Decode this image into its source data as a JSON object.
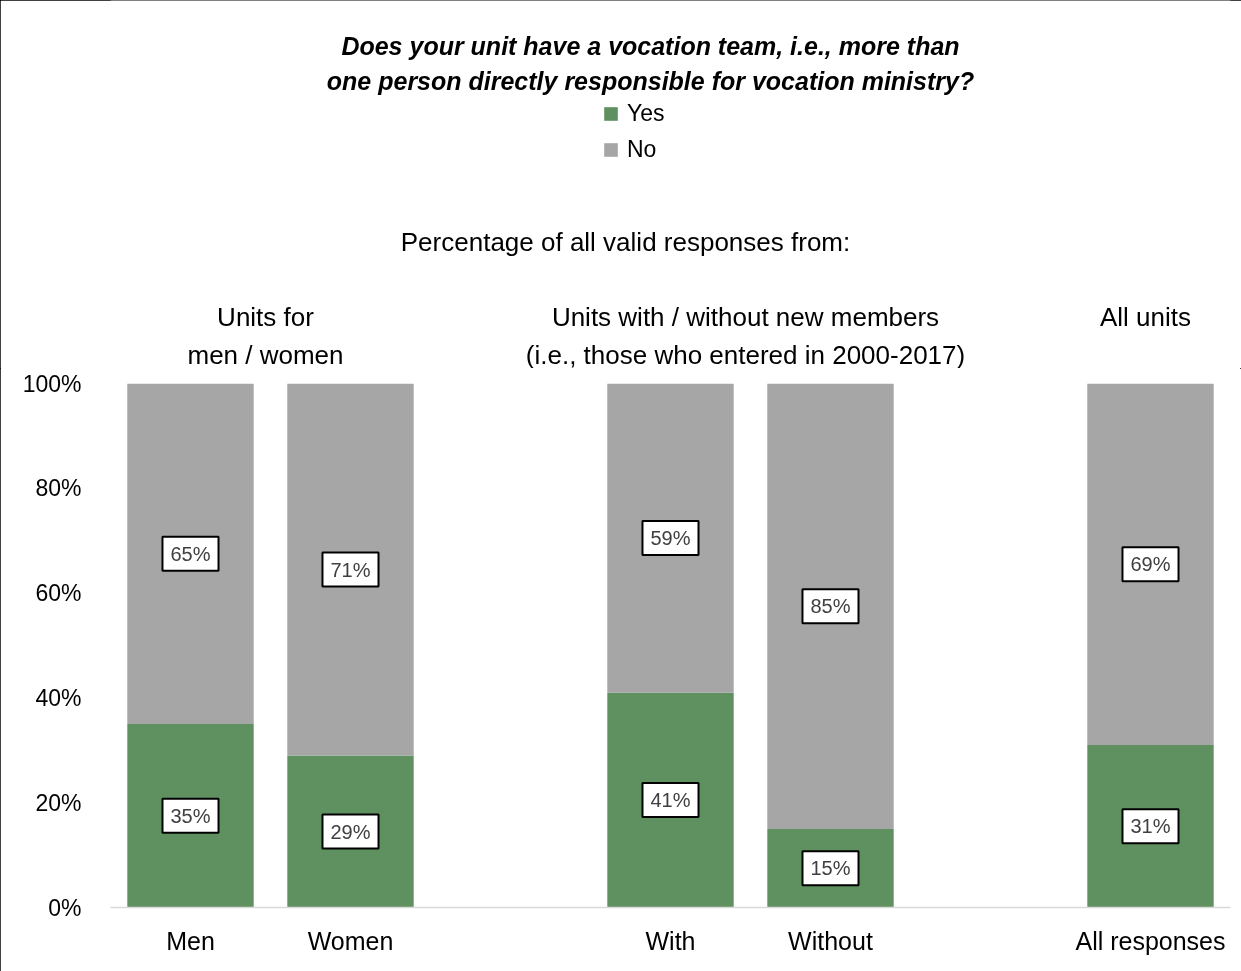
{
  "chart_data": {
    "type": "bar",
    "title": "Does your unit have a vocation team, i.e., more than\none person directly responsible for vocation ministry?",
    "subtitle": "Percentage of all valid responses from:",
    "annotations": [
      "Units for\nmen / women",
      "Units with / without new members\n(i.e., those who entered in 2000-2017)",
      "All units"
    ],
    "categories": [
      "Men",
      "Women",
      null,
      "With",
      "Without",
      null,
      "All responses"
    ],
    "series": [
      {
        "name": "Yes",
        "color": "#5f9160",
        "values": [
          35,
          29,
          null,
          41,
          15,
          null,
          31
        ],
        "value_labels": [
          "35%",
          "29%",
          null,
          "41%",
          "15%",
          null,
          "31%"
        ]
      },
      {
        "name": "No",
        "color": "#a6a6a6",
        "values": [
          65,
          71,
          null,
          59,
          85,
          null,
          69
        ],
        "value_labels": [
          "65%",
          "71%",
          null,
          "59%",
          "85%",
          null,
          "69%"
        ]
      }
    ],
    "stacked": true,
    "ylim": [
      0,
      100
    ],
    "yticks": [
      {
        "value": 0,
        "label": "0%"
      },
      {
        "value": 20,
        "label": "20%"
      },
      {
        "value": 40,
        "label": "40%"
      },
      {
        "value": 60,
        "label": "60%"
      },
      {
        "value": 80,
        "label": "80%"
      },
      {
        "value": 100,
        "label": "100%"
      }
    ],
    "legend": "top"
  }
}
